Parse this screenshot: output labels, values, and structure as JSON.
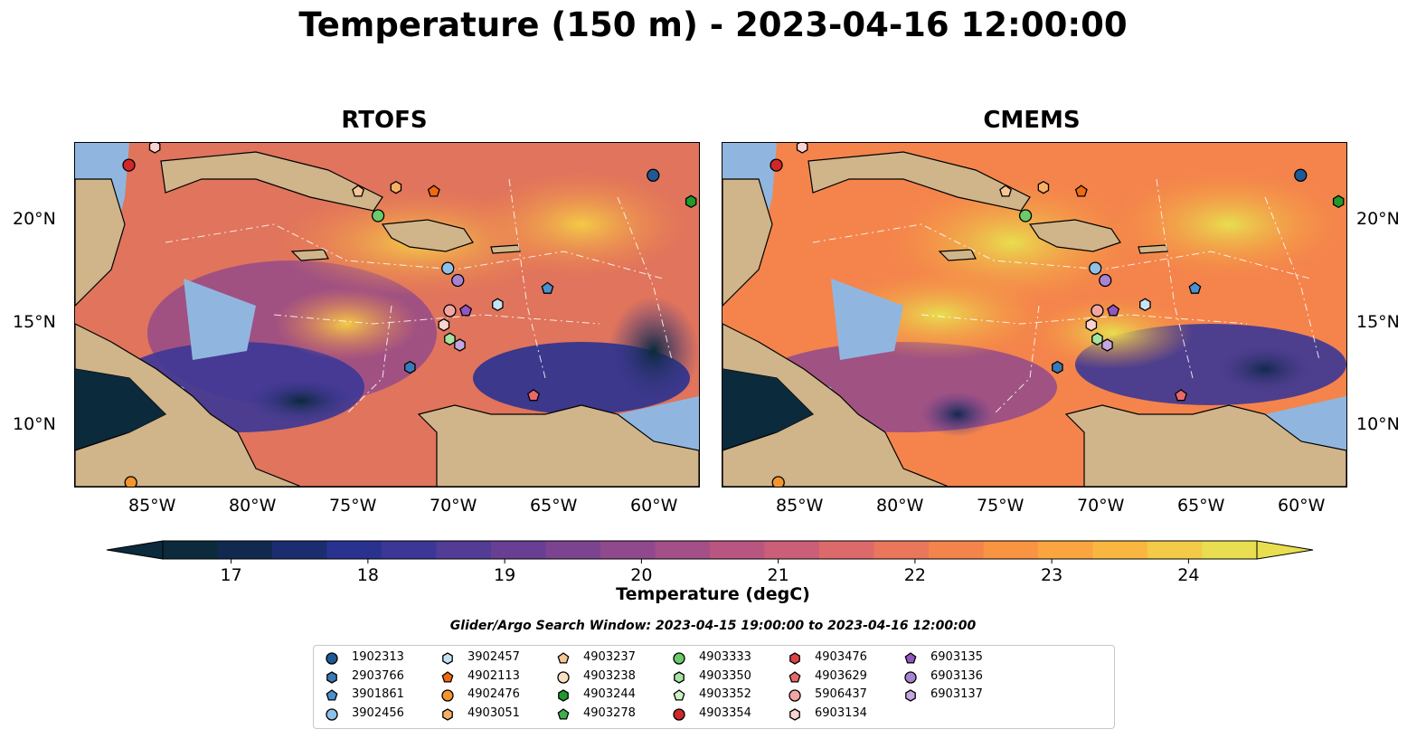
{
  "title": "Temperature (150 m) - 2023-04-16 12:00:00",
  "panels": [
    {
      "title": "RTOFS"
    },
    {
      "title": "CMEMS"
    }
  ],
  "lon_labels": [
    "85°W",
    "80°W",
    "75°W",
    "70°W",
    "65°W",
    "60°W"
  ],
  "lat_labels": [
    "20°N",
    "15°N",
    "10°N"
  ],
  "colorbar": {
    "label": "Temperature (degC)",
    "ticks": [
      "17",
      "18",
      "19",
      "20",
      "21",
      "22",
      "23",
      "24"
    ],
    "min": 16.5,
    "max": 24.5,
    "colors": [
      "#0b2a3b",
      "#12294f",
      "#1b2d6e",
      "#2a3290",
      "#3c3796",
      "#523c96",
      "#683f93",
      "#7c4490",
      "#90498c",
      "#a44f87",
      "#b85681",
      "#cb5e78",
      "#dc6a6b",
      "#ea765c",
      "#f4844c",
      "#f99442",
      "#faa53f",
      "#f9b741",
      "#f3cb47",
      "#e8de4f"
    ]
  },
  "search_window": "Glider/Argo Search Window: 2023-04-15 19:00:00 to 2023-04-16 12:00:00",
  "legend": [
    {
      "label": "1902313",
      "shape": "circle",
      "color": "#1f5a96"
    },
    {
      "label": "2903766",
      "shape": "hexagon",
      "color": "#3a7ab8"
    },
    {
      "label": "3901861",
      "shape": "pentagon",
      "color": "#4a90d0"
    },
    {
      "label": "3902456",
      "shape": "circle",
      "color": "#8fc1e8"
    },
    {
      "label": "3902457",
      "shape": "hexagon",
      "color": "#c6e2f5"
    },
    {
      "label": "4902113",
      "shape": "pentagon",
      "color": "#ee6a10"
    },
    {
      "label": "4902476",
      "shape": "circle",
      "color": "#f3952f"
    },
    {
      "label": "4903051",
      "shape": "hexagon",
      "color": "#f7b166"
    },
    {
      "label": "4903237",
      "shape": "pentagon",
      "color": "#f8c595"
    },
    {
      "label": "4903238",
      "shape": "circle",
      "color": "#fbe0c2"
    },
    {
      "label": "4903244",
      "shape": "hexagon",
      "color": "#1f9a2a"
    },
    {
      "label": "4903278",
      "shape": "pentagon",
      "color": "#3fb04a"
    },
    {
      "label": "4903333",
      "shape": "circle",
      "color": "#6bca6a"
    },
    {
      "label": "4903350",
      "shape": "hexagon",
      "color": "#a6e2a0"
    },
    {
      "label": "4903352",
      "shape": "pentagon",
      "color": "#cdf2c3"
    },
    {
      "label": "4903354",
      "shape": "circle",
      "color": "#d0272a"
    },
    {
      "label": "4903476",
      "shape": "hexagon",
      "color": "#dd4344"
    },
    {
      "label": "4903629",
      "shape": "pentagon",
      "color": "#e8686c"
    },
    {
      "label": "5906437",
      "shape": "circle",
      "color": "#f2a6a4"
    },
    {
      "label": "6903134",
      "shape": "hexagon",
      "color": "#fbd4d1"
    },
    {
      "label": "6903135",
      "shape": "pentagon",
      "color": "#9355c0"
    },
    {
      "label": "6903136",
      "shape": "circle",
      "color": "#a784d2"
    },
    {
      "label": "6903137",
      "shape": "hexagon",
      "color": "#c4a7e0"
    }
  ],
  "floats": [
    {
      "id": "4903354",
      "lon": -86.3,
      "lat": 22.9
    },
    {
      "id": "6903134",
      "lon": -85.0,
      "lat": 23.8
    },
    {
      "id": "4902476",
      "lon": -86.2,
      "lat": 7.2
    },
    {
      "id": "4903237",
      "lon": -74.8,
      "lat": 21.6
    },
    {
      "id": "4903051",
      "lon": -72.9,
      "lat": 21.8
    },
    {
      "id": "4902113",
      "lon": -71.0,
      "lat": 21.6
    },
    {
      "id": "4903333",
      "lon": -73.8,
      "lat": 20.4
    },
    {
      "id": "1902313",
      "lon": -60.0,
      "lat": 22.4
    },
    {
      "id": "4903244",
      "lon": -58.1,
      "lat": 21.1
    },
    {
      "id": "3902456",
      "lon": -70.3,
      "lat": 17.8
    },
    {
      "id": "6903136",
      "lon": -69.8,
      "lat": 17.2
    },
    {
      "id": "3902457",
      "lon": -67.8,
      "lat": 16.0
    },
    {
      "id": "3901861",
      "lon": -65.3,
      "lat": 16.8
    },
    {
      "id": "5906437",
      "lon": -70.2,
      "lat": 15.7
    },
    {
      "id": "6903135",
      "lon": -69.4,
      "lat": 15.7
    },
    {
      "id": "6903134",
      "lon": -70.5,
      "lat": 15.0
    },
    {
      "id": "4903350",
      "lon": -70.2,
      "lat": 14.3
    },
    {
      "id": "6903137",
      "lon": -69.7,
      "lat": 14.0
    },
    {
      "id": "2903766",
      "lon": -72.2,
      "lat": 12.9
    },
    {
      "id": "4903629",
      "lon": -66.0,
      "lat": 11.5
    }
  ]
}
